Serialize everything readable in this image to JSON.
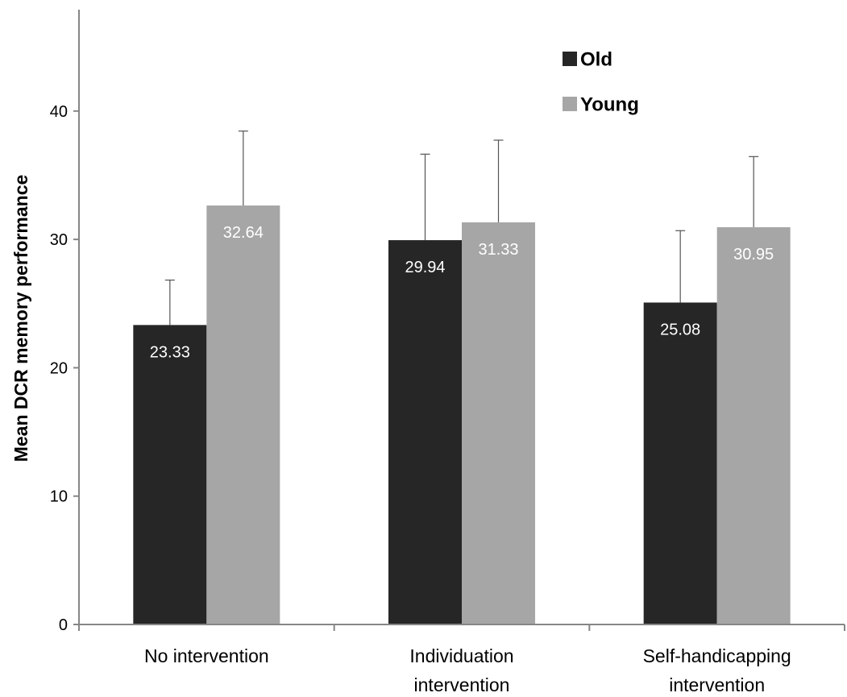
{
  "chart_data": {
    "type": "bar",
    "title": "",
    "xlabel": "",
    "ylabel": "Mean DCR memory performance",
    "ylim": [
      0,
      48
    ],
    "yticks": [
      0,
      10,
      20,
      30,
      40
    ],
    "grid": false,
    "legend_position": "top-right",
    "categories": [
      [
        "No intervention"
      ],
      [
        "Individuation",
        "intervention"
      ],
      [
        "Self-handicapping",
        "intervention"
      ]
    ],
    "series": [
      {
        "name": "Old",
        "color": "#262626",
        "values": [
          23.33,
          29.94,
          25.08
        ],
        "labels": [
          "23.33",
          "29.94",
          "25.08"
        ],
        "error": [
          3.5,
          6.7,
          5.6
        ]
      },
      {
        "name": "Young",
        "color": "#a6a6a6",
        "values": [
          32.64,
          31.33,
          30.95
        ],
        "labels": [
          "32.64",
          "31.33",
          "30.95"
        ],
        "error": [
          5.8,
          6.4,
          5.5
        ]
      }
    ]
  }
}
